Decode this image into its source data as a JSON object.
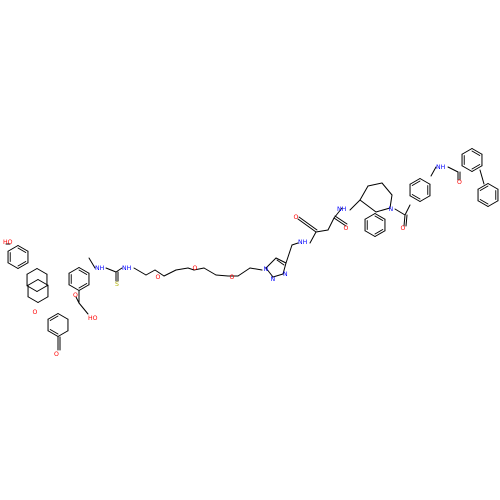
{
  "colors": {
    "bond": "#000000",
    "oxygen": "#ff0000",
    "nitrogen": "#0000ff",
    "sulfur": "#b2b200",
    "background": "#ffffff"
  },
  "atom_labels": {
    "ho_xanthene": "HO",
    "o_ring": "O",
    "o_keto": "O",
    "cooh": "HO",
    "cooh_o": "O",
    "thiourea_nh1": "NH",
    "thiourea_nh2": "NH",
    "thiourea_s": "S",
    "peg_o1": "O",
    "peg_o2": "O",
    "peg_o3": "O",
    "triazole_n1": "N",
    "triazole_n2": "N",
    "triazole_n3": "N",
    "amide_nh1": "NH",
    "amide_o1": "O",
    "amide_o2": "O",
    "amide_nh2": "NH",
    "azepine_n": "N",
    "benzoyl_o": "O",
    "amide_nh3": "NH",
    "amide_o3": "O"
  }
}
